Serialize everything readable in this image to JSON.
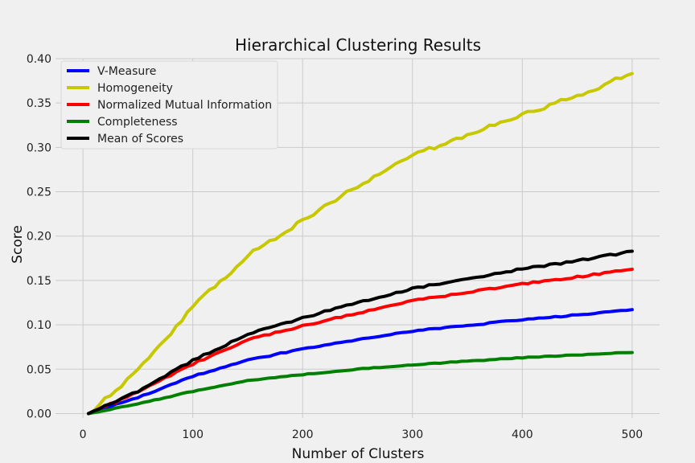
{
  "chart_data": {
    "type": "line",
    "title": "Hierarchical Clustering Results",
    "xlabel": "Number of Clusters",
    "ylabel": "Score",
    "xlim": [
      -25,
      525
    ],
    "ylim": [
      -0.005,
      0.4
    ],
    "x_ticks": [
      0,
      100,
      200,
      300,
      400,
      500
    ],
    "y_ticks": [
      0.0,
      0.05,
      0.1,
      0.15,
      0.2,
      0.25,
      0.3,
      0.35,
      0.4
    ],
    "x_tick_labels": [
      "0",
      "100",
      "200",
      "300",
      "400",
      "500"
    ],
    "y_tick_labels": [
      "0.00",
      "0.05",
      "0.10",
      "0.15",
      "0.20",
      "0.25",
      "0.30",
      "0.35",
      "0.40"
    ],
    "grid": true,
    "legend_position": "top-left",
    "x": [
      5,
      50,
      100,
      150,
      200,
      250,
      300,
      350,
      400,
      450,
      500
    ],
    "series": [
      {
        "name": "V-Measure",
        "color": "#0000ff",
        "values": [
          0.0,
          0.018,
          0.042,
          0.06,
          0.073,
          0.083,
          0.093,
          0.099,
          0.106,
          0.111,
          0.117
        ]
      },
      {
        "name": "Homogeneity",
        "color": "#c8c800",
        "values": [
          0.0,
          0.048,
          0.12,
          0.178,
          0.218,
          0.256,
          0.291,
          0.314,
          0.337,
          0.358,
          0.384
        ]
      },
      {
        "name": "Normalized Mutual Information",
        "color": "#ff0000",
        "values": [
          0.0,
          0.024,
          0.056,
          0.083,
          0.099,
          0.113,
          0.127,
          0.137,
          0.146,
          0.154,
          0.163
        ]
      },
      {
        "name": "Completeness",
        "color": "#008000",
        "values": [
          0.0,
          0.011,
          0.025,
          0.037,
          0.044,
          0.05,
          0.055,
          0.059,
          0.063,
          0.066,
          0.069
        ]
      },
      {
        "name": "Mean of Scores",
        "color": "#000000",
        "values": [
          0.0,
          0.025,
          0.06,
          0.089,
          0.108,
          0.125,
          0.141,
          0.152,
          0.163,
          0.172,
          0.183
        ]
      }
    ]
  }
}
